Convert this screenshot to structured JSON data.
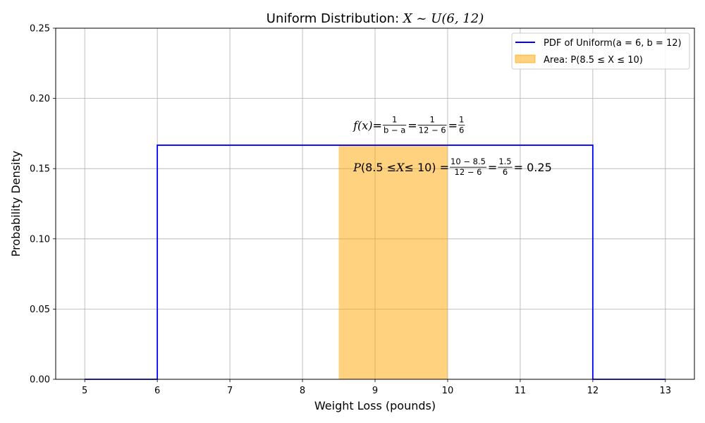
{
  "chart_data": {
    "type": "area",
    "title_prefix": "Uniform Distribution: ",
    "title_math": "X ~ U(6, 12)",
    "xlabel": "Weight Loss (pounds)",
    "ylabel": "Probability Density",
    "xlim": [
      4.6,
      13.4
    ],
    "ylim": [
      0,
      0.25
    ],
    "xticks": [
      5,
      6,
      7,
      8,
      9,
      10,
      11,
      12,
      13
    ],
    "yticks": [
      0.0,
      0.05,
      0.1,
      0.15,
      0.2,
      0.25
    ],
    "ytick_labels": [
      "0.00",
      "0.05",
      "0.10",
      "0.15",
      "0.20",
      "0.25"
    ],
    "grid": true,
    "legend_position": "top-right",
    "series": [
      {
        "name": "PDF of Uniform(a = 6, b = 12)",
        "color": "#0000ff",
        "x": [
          5,
          6,
          6,
          12,
          12,
          13
        ],
        "y": [
          0,
          0,
          0.1667,
          0.1667,
          0,
          0
        ]
      }
    ],
    "shaded_area": {
      "name": "Area: P(8.5 ≤ X ≤ 10)",
      "color": "#ffa500",
      "x_from": 8.5,
      "x_to": 10,
      "height": 0.1667
    },
    "annotations": [
      {
        "id": "pdf-formula",
        "x": 8.7,
        "y": 0.18,
        "parts": [
          {
            "text": "f(x)",
            "style": "italic"
          },
          {
            "text": " = "
          },
          {
            "frac": [
              "1",
              "b − a"
            ]
          },
          {
            "text": " = "
          },
          {
            "frac": [
              "1",
              "12 − 6"
            ]
          },
          {
            "text": " = "
          },
          {
            "frac": [
              "1",
              "6"
            ]
          }
        ]
      },
      {
        "id": "area-formula",
        "x": 8.7,
        "y": 0.15,
        "parts": [
          {
            "text": "P",
            "style": "italic"
          },
          {
            "text": "(8.5 ≤ "
          },
          {
            "text": "X",
            "style": "italic"
          },
          {
            "text": " ≤ 10) = "
          },
          {
            "frac": [
              "10 − 8.5",
              "12 − 6"
            ]
          },
          {
            "text": " = "
          },
          {
            "frac": [
              "1.5",
              "6"
            ]
          },
          {
            "text": " = 0.25"
          }
        ]
      }
    ]
  }
}
